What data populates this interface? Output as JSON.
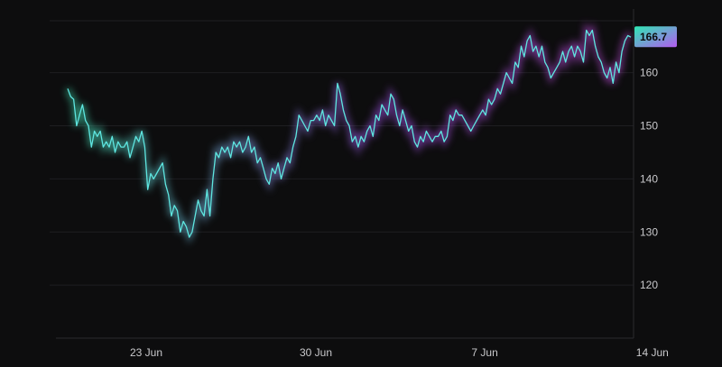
{
  "chart_data": {
    "type": "line",
    "title": "",
    "xlabel": "",
    "ylabel": "",
    "ylim": [
      110,
      172
    ],
    "grid": true,
    "y_ticks": [
      120,
      130,
      140,
      150,
      160
    ],
    "y_tick_labels": [
      "120",
      "130",
      "140",
      "150",
      "160"
    ],
    "x_tick_labels": [
      "23 Jun",
      "30 Jun",
      "7 Jun",
      "14 Jun"
    ],
    "x_tick_positions": [
      0.205,
      0.44,
      0.678,
      0.906
    ],
    "last_value_label": "166.7",
    "colors": {
      "line": "#5ee6e0",
      "glow_green": "#3ee0b0",
      "glow_purple": "#c04bd8",
      "badge_start": "#2ee8b4",
      "badge_end": "#b45cf0"
    },
    "series": [
      {
        "values": [
          157,
          155.5,
          155,
          150,
          152,
          154,
          151,
          150,
          146,
          149,
          148,
          149,
          146,
          147,
          146,
          148,
          145,
          147,
          146,
          146,
          147,
          144,
          146,
          148,
          147,
          149,
          146,
          138,
          141,
          140,
          141,
          142,
          143,
          139,
          137,
          133,
          135,
          134,
          130,
          132,
          131,
          129,
          130,
          133,
          136,
          134,
          133,
          138,
          133,
          140,
          145,
          144,
          146,
          145,
          146,
          144,
          147,
          146,
          147,
          145,
          146,
          148,
          145,
          146,
          143,
          144,
          142,
          140,
          139,
          142,
          141,
          143,
          140,
          142,
          144,
          143,
          146,
          148,
          152,
          151,
          150,
          149,
          151,
          151,
          152,
          151,
          153,
          150,
          152,
          151,
          150,
          158,
          156,
          153,
          151,
          150,
          147,
          148,
          146,
          148,
          147,
          149,
          150,
          148,
          152,
          151,
          154,
          153,
          152,
          156,
          155,
          152,
          150,
          153,
          151,
          149,
          150,
          147,
          146,
          148,
          147,
          149,
          148,
          147,
          148,
          148,
          149,
          147,
          148,
          152,
          151,
          153,
          152,
          152,
          151,
          150,
          149,
          150,
          151,
          152,
          153,
          152,
          155,
          154,
          155,
          157,
          156,
          158,
          160,
          159,
          158,
          162,
          161,
          165,
          163,
          166,
          167,
          164,
          165,
          163,
          165,
          162,
          161,
          159,
          160,
          161,
          162,
          164,
          162,
          164,
          165,
          163,
          165,
          164,
          162,
          168,
          167,
          168,
          165,
          163,
          162,
          160,
          159,
          161,
          158,
          162,
          160,
          164,
          166,
          167,
          166.7
        ]
      }
    ]
  }
}
